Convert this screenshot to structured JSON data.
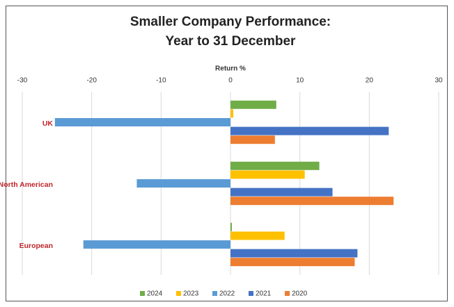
{
  "chart_data": {
    "type": "hbar",
    "title": [
      "Smaller Company Performance:",
      "Year to 31 December"
    ],
    "xlabel": "Return %",
    "categories": [
      "UK",
      "North American",
      "European"
    ],
    "series": [
      {
        "name": "2024",
        "color": "#70ad47",
        "values": [
          6.6,
          12.8,
          0.2
        ]
      },
      {
        "name": "2023",
        "color": "#ffc000",
        "values": [
          0.4,
          10.7,
          7.8
        ]
      },
      {
        "name": "2022",
        "color": "#5b9bd5",
        "values": [
          -25.3,
          -13.5,
          -21.2
        ]
      },
      {
        "name": "2021",
        "color": "#4472c4",
        "values": [
          22.8,
          14.7,
          18.3
        ]
      },
      {
        "name": "2020",
        "color": "#ed7d31",
        "values": [
          6.4,
          23.5,
          17.9
        ]
      }
    ],
    "xlim": [
      -30,
      30
    ],
    "xticks": [
      -30,
      -20,
      -10,
      0,
      10,
      20,
      30
    ],
    "grid": true,
    "legend": "bottom"
  }
}
